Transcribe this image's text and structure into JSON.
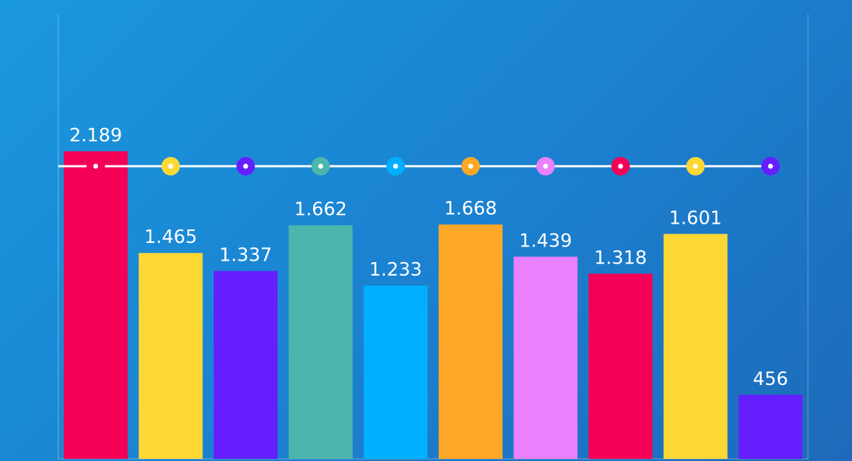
{
  "chart_data": {
    "type": "bar",
    "values": [
      2189,
      1465,
      1337,
      1662,
      1233,
      1668,
      1439,
      1318,
      1601,
      456
    ],
    "data_labels": [
      "2.189",
      "1.465",
      "1.337",
      "1.662",
      "1.233",
      "1.668",
      "1.439",
      "1.318",
      "1.601",
      "456"
    ],
    "colors": [
      "#f50057",
      "#fdd835",
      "#651fff",
      "#4db6ac",
      "#00b0ff",
      "#ffa726",
      "#ea80fc",
      "#f50057",
      "#fdd835",
      "#651fff"
    ],
    "reference_line": {
      "marker_colors": [
        "#f50057",
        "#fdd835",
        "#651fff",
        "#4db6ac",
        "#00b0ff",
        "#ffa726",
        "#ea80fc",
        "#f50057",
        "#fdd835",
        "#651fff"
      ]
    },
    "background_colors": [
      "#1a98de",
      "#1d6ab9"
    ],
    "grid": false,
    "legend": "none"
  }
}
